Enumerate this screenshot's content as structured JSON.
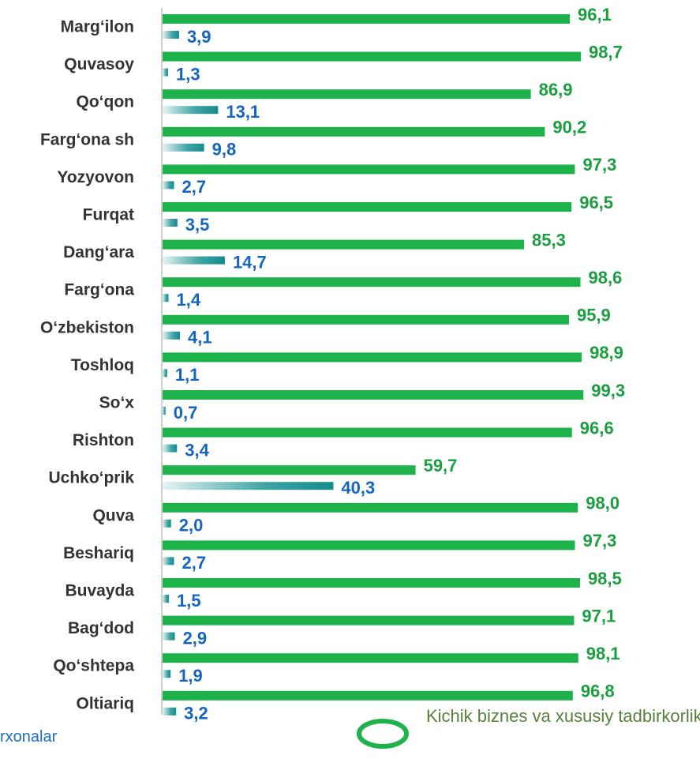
{
  "chart_data": {
    "type": "bar",
    "orientation": "horizontal",
    "categories": [
      "Marg‘ilon",
      "Quvasoy",
      "Qo‘qon",
      "Farg‘ona sh",
      "Yozyovon",
      "Furqat",
      "Dang‘ara",
      "Farg‘ona",
      "O‘zbekiston",
      "Toshloq",
      "So‘x",
      "Rishton",
      "Uchko‘prik",
      "Quva",
      "Beshariq",
      "Buvayda",
      "Bag‘dod",
      "Qo‘shtepa",
      "Oltiariq"
    ],
    "series": [
      {
        "name": "Kichik biznes va xususiy tadbirkorlik",
        "color": "#1db34a",
        "values": [
          96.1,
          98.7,
          86.9,
          90.2,
          97.3,
          96.5,
          85.3,
          98.6,
          95.9,
          98.9,
          99.3,
          96.6,
          59.7,
          98.0,
          97.3,
          98.5,
          97.1,
          98.1,
          96.8
        ],
        "value_labels": [
          "96,1",
          "98,7",
          "86,9",
          "90,2",
          "97,3",
          "96,5",
          "85,3",
          "98,6",
          "95,9",
          "98,9",
          "99,3",
          "96,6",
          "59,7",
          "98,0",
          "97,3",
          "98,5",
          "97,1",
          "98,1",
          "96,8"
        ]
      },
      {
        "name": "rxonalar",
        "color": "#138c8f",
        "values": [
          3.9,
          1.3,
          13.1,
          9.8,
          2.7,
          3.5,
          14.7,
          1.4,
          4.1,
          1.1,
          0.7,
          3.4,
          40.3,
          2.0,
          2.7,
          1.5,
          2.9,
          1.9,
          3.2
        ],
        "value_labels": [
          "3,9",
          "1,3",
          "13,1",
          "9,8",
          "2,7",
          "3,5",
          "14,7",
          "1,4",
          "4,1",
          "1,1",
          "0,7",
          "3,4",
          "40,3",
          "2,0",
          "2,7",
          "1,5",
          "2,9",
          "1,9",
          "3,2"
        ]
      }
    ],
    "xlim": [
      0,
      100
    ]
  }
}
